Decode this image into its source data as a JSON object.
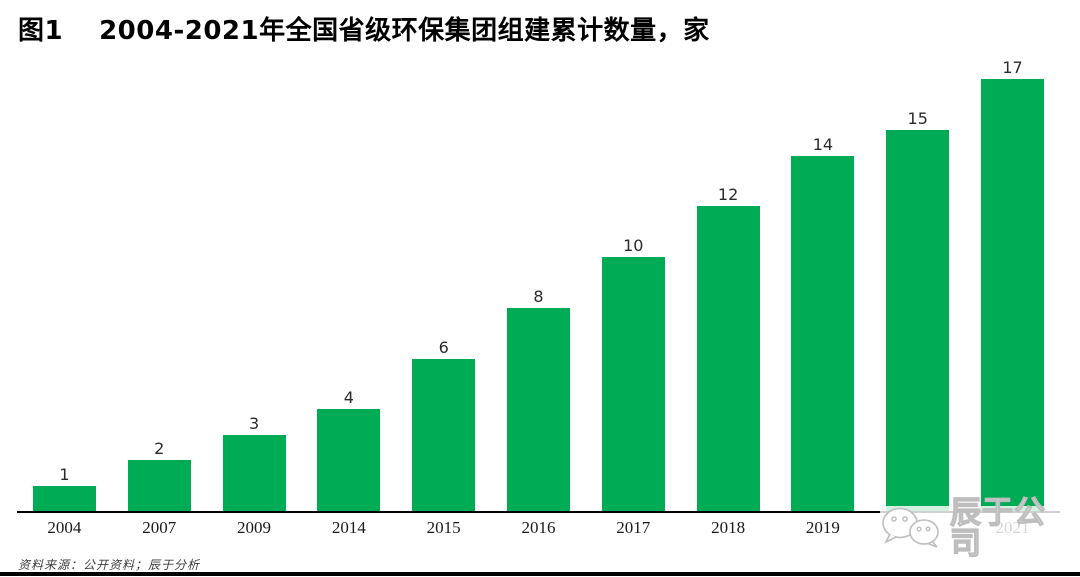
{
  "figure": {
    "label": "图1",
    "title": "2004-2021年全国省级环保集团组建累计数量，家"
  },
  "chart_data": {
    "type": "bar",
    "title": "图1 2004-2021年全国省级环保集团组建累计数量，家",
    "categories": [
      "2004",
      "2007",
      "2009",
      "2014",
      "2015",
      "2016",
      "2017",
      "2018",
      "2019",
      "2020",
      "2021"
    ],
    "values": [
      1,
      2,
      3,
      4,
      6,
      8,
      10,
      12,
      14,
      15,
      17
    ],
    "xlabel": "",
    "ylabel": "",
    "ylim": [
      0,
      18
    ],
    "grid": false,
    "legend": "none",
    "value_labels_shown": true,
    "bar_color": "#00AB55",
    "axis_color": "#000000"
  },
  "watermark": {
    "name": "辰于公司",
    "icon": "wechat-icon",
    "stroke_color": "#bdbdbd"
  },
  "footer": {
    "source": "资料来源：公开资料；辰于分析"
  }
}
